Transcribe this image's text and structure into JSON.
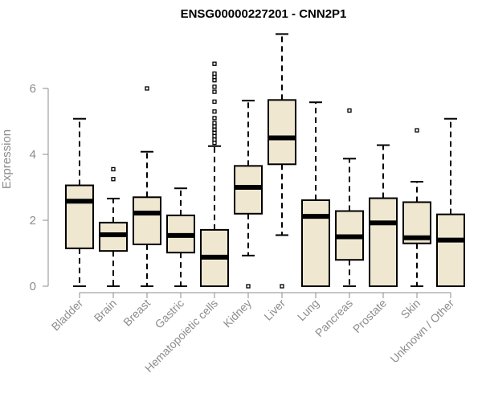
{
  "chart_data": {
    "type": "boxplot",
    "title": "ENSG00000227201 - CNN2P1",
    "ylabel": "Expression",
    "xlabel": "",
    "ylim": [
      0,
      7.7
    ],
    "yticks": [
      0,
      2,
      4,
      6
    ],
    "grid": false,
    "legend": "none",
    "colors": {
      "box_fill": "#efe7d0",
      "line": "#000000",
      "axis": "#8c8c8c"
    },
    "categories": [
      "Bladder",
      "Brain",
      "Breast",
      "Gastric",
      "Hematopoietic cells",
      "Kidney",
      "Liver",
      "Lung",
      "Pancreas",
      "Prostate",
      "Skin",
      "Unknown / Other"
    ],
    "boxes": [
      {
        "min": 0,
        "q1": 1.15,
        "median": 2.58,
        "q3": 3.06,
        "max": 5.08,
        "outliers": []
      },
      {
        "min": 0,
        "q1": 1.07,
        "median": 1.56,
        "q3": 1.93,
        "max": 2.66,
        "outliers": [
          3.25,
          3.55
        ]
      },
      {
        "min": 0,
        "q1": 1.27,
        "median": 2.22,
        "q3": 2.7,
        "max": 4.08,
        "outliers": [
          6.0
        ]
      },
      {
        "min": 0,
        "q1": 1.02,
        "median": 1.54,
        "q3": 2.15,
        "max": 2.97,
        "outliers": []
      },
      {
        "min": 0,
        "q1": 0,
        "median": 0.88,
        "q3": 1.71,
        "max": 4.25,
        "outliers": [
          4.35,
          4.45,
          4.55,
          4.65,
          4.75,
          4.85,
          4.95,
          5.1,
          5.3,
          5.6,
          5.9,
          6.05,
          6.25,
          6.35,
          6.45,
          6.75
        ]
      },
      {
        "min": 0.93,
        "q1": 2.2,
        "median": 3.0,
        "q3": 3.65,
        "max": 5.63,
        "outliers": [
          0
        ]
      },
      {
        "min": 1.55,
        "q1": 3.7,
        "median": 4.5,
        "q3": 5.65,
        "max": 7.65,
        "outliers": [
          0
        ]
      },
      {
        "min": 0,
        "q1": 0,
        "median": 2.12,
        "q3": 2.61,
        "max": 5.58,
        "outliers": []
      },
      {
        "min": 0,
        "q1": 0.8,
        "median": 1.5,
        "q3": 2.28,
        "max": 3.87,
        "outliers": [
          5.33
        ]
      },
      {
        "min": 0,
        "q1": 0,
        "median": 1.92,
        "q3": 2.67,
        "max": 4.28,
        "outliers": []
      },
      {
        "min": 0,
        "q1": 1.3,
        "median": 1.47,
        "q3": 2.55,
        "max": 3.17,
        "outliers": [
          4.73
        ]
      },
      {
        "min": 0,
        "q1": 0,
        "median": 1.4,
        "q3": 2.18,
        "max": 5.08,
        "outliers": []
      }
    ]
  }
}
